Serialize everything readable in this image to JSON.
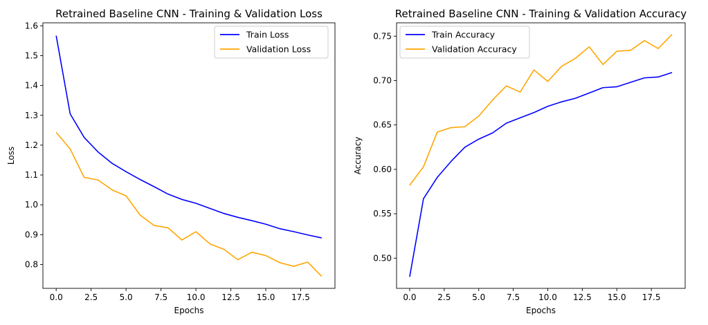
{
  "chart_data": [
    {
      "type": "line",
      "title": "Retrained Baseline CNN - Training & Validation Loss",
      "xlabel": "Epochs",
      "ylabel": "Loss",
      "xlim": [
        -0.95,
        19.95
      ],
      "ylim": [
        0.72,
        1.61
      ],
      "xticks": [
        0,
        2.5,
        5,
        7.5,
        10,
        12.5,
        15,
        17.5
      ],
      "xtick_labels": [
        "0.0",
        "2.5",
        "5.0",
        "7.5",
        "10.0",
        "12.5",
        "15.0",
        "17.5"
      ],
      "yticks": [
        0.8,
        0.9,
        1.0,
        1.1,
        1.2,
        1.3,
        1.4,
        1.5,
        1.6
      ],
      "ytick_labels": [
        "0.8",
        "0.9",
        "1.0",
        "1.1",
        "1.2",
        "1.3",
        "1.4",
        "1.5",
        "1.6"
      ],
      "grid": false,
      "legend_position": "top-right",
      "x": [
        0,
        1,
        2,
        3,
        4,
        5,
        6,
        7,
        8,
        9,
        10,
        11,
        12,
        13,
        14,
        15,
        16,
        17,
        18,
        19
      ],
      "series": [
        {
          "name": "Train Loss",
          "color": "#0000ff",
          "values": [
            1.567,
            1.305,
            1.226,
            1.177,
            1.139,
            1.111,
            1.085,
            1.061,
            1.036,
            1.018,
            1.005,
            0.988,
            0.971,
            0.958,
            0.947,
            0.935,
            0.92,
            0.91,
            0.899,
            0.889
          ]
        },
        {
          "name": "Validation Loss",
          "color": "#ffa500",
          "values": [
            1.243,
            1.187,
            1.092,
            1.083,
            1.05,
            1.03,
            0.966,
            0.931,
            0.923,
            0.882,
            0.91,
            0.869,
            0.851,
            0.816,
            0.841,
            0.83,
            0.806,
            0.794,
            0.808,
            0.76
          ]
        }
      ]
    },
    {
      "type": "line",
      "title": "Retrained Baseline CNN - Training & Validation Accuracy",
      "xlabel": "Epochs",
      "ylabel": "Accuracy",
      "xlim": [
        -0.95,
        19.95
      ],
      "ylim": [
        0.466,
        0.765
      ],
      "xticks": [
        0,
        2.5,
        5,
        7.5,
        10,
        12.5,
        15,
        17.5
      ],
      "xtick_labels": [
        "0.0",
        "2.5",
        "5.0",
        "7.5",
        "10.0",
        "12.5",
        "15.0",
        "17.5"
      ],
      "yticks": [
        0.5,
        0.55,
        0.6,
        0.65,
        0.7,
        0.75
      ],
      "ytick_labels": [
        "0.50",
        "0.55",
        "0.60",
        "0.65",
        "0.70",
        "0.75"
      ],
      "grid": false,
      "legend_position": "top-left",
      "x": [
        0,
        1,
        2,
        3,
        4,
        5,
        6,
        7,
        8,
        9,
        10,
        11,
        12,
        13,
        14,
        15,
        16,
        17,
        18,
        19
      ],
      "series": [
        {
          "name": "Train Accuracy",
          "color": "#0000ff",
          "values": [
            0.479,
            0.567,
            0.591,
            0.609,
            0.625,
            0.634,
            0.641,
            0.652,
            0.658,
            0.664,
            0.671,
            0.676,
            0.68,
            0.686,
            0.692,
            0.693,
            0.698,
            0.703,
            0.704,
            0.709
          ]
        },
        {
          "name": "Validation Accuracy",
          "color": "#ffa500",
          "values": [
            0.582,
            0.603,
            0.642,
            0.647,
            0.648,
            0.66,
            0.678,
            0.694,
            0.687,
            0.712,
            0.699,
            0.716,
            0.725,
            0.738,
            0.718,
            0.733,
            0.734,
            0.745,
            0.736,
            0.752
          ]
        }
      ]
    }
  ]
}
